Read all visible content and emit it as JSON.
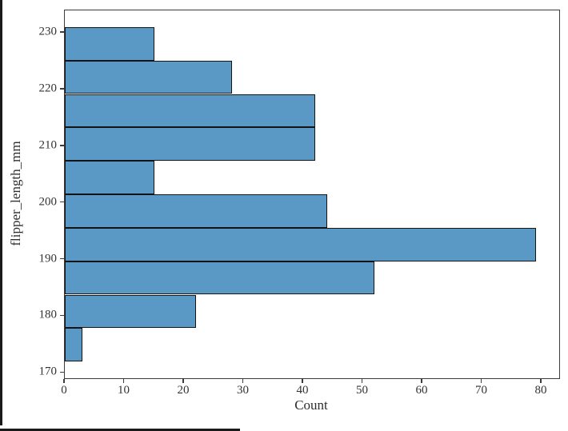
{
  "figure": {
    "background_color": "#ffffff",
    "artifact_color": "#1a1a1a"
  },
  "chart_data": {
    "type": "bar",
    "subtype": "histogram",
    "orientation": "horizontal",
    "title": "",
    "xlabel": "Count",
    "ylabel": "flipper_length_mm",
    "bin_edges": [
      172,
      177.9,
      183.8,
      189.7,
      195.6,
      201.5,
      207.4,
      213.3,
      219.2,
      225.1,
      231
    ],
    "counts": [
      3,
      22,
      52,
      79,
      44,
      15,
      42,
      42,
      28,
      15
    ],
    "total_count": 342,
    "xlim": [
      0,
      82.95
    ],
    "ylim": [
      169.05,
      233.95
    ],
    "xticks": [
      0,
      10,
      20,
      30,
      40,
      50,
      60,
      70,
      80
    ],
    "yticks": [
      170,
      180,
      190,
      200,
      210,
      220,
      230
    ],
    "grid": false,
    "legend": null,
    "bar_fill_color": "#5a99c6",
    "bar_edge_color": "#141414",
    "axis_color": "#3c3c3c",
    "tick_label_color": "#333333"
  }
}
